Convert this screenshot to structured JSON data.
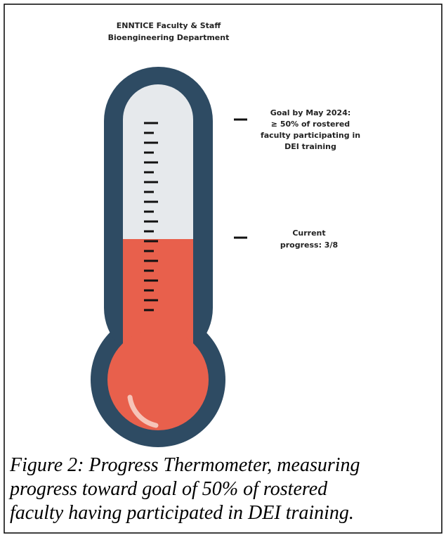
{
  "figure": {
    "title_lines": [
      "ENNTICE Faculty & Staff",
      "Bioengineering Department"
    ],
    "goal_lines": [
      "Goal by May 2024:",
      "≥ 50% of rostered",
      "faculty participating in",
      "DEI training"
    ],
    "progress_lines": [
      "Current",
      "progress: 3/8"
    ]
  },
  "caption_lines": [
    "Figure 2: Progress Thermometer, measuring",
    "progress toward goal of 50% of rostered",
    "faculty having participated in DEI training."
  ]
}
